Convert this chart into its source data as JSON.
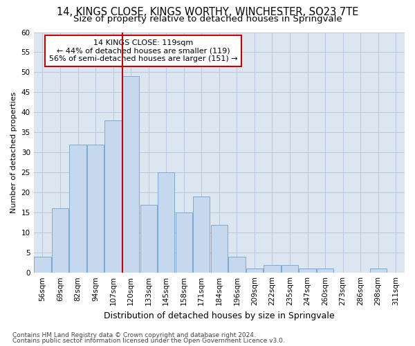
{
  "title1": "14, KINGS CLOSE, KINGS WORTHY, WINCHESTER, SO23 7TE",
  "title2": "Size of property relative to detached houses in Springvale",
  "xlabel": "Distribution of detached houses by size in Springvale",
  "ylabel": "Number of detached properties",
  "categories": [
    "56sqm",
    "69sqm",
    "82sqm",
    "94sqm",
    "107sqm",
    "120sqm",
    "133sqm",
    "145sqm",
    "158sqm",
    "171sqm",
    "184sqm",
    "196sqm",
    "209sqm",
    "222sqm",
    "235sqm",
    "247sqm",
    "260sqm",
    "273sqm",
    "286sqm",
    "298sqm",
    "311sqm"
  ],
  "values": [
    4,
    16,
    32,
    32,
    38,
    49,
    17,
    25,
    15,
    19,
    12,
    4,
    1,
    2,
    2,
    1,
    1,
    0,
    0,
    1,
    0
  ],
  "bar_color": "#c5d8ee",
  "bar_edge_color": "#7baad4",
  "highlight_bar_index": 5,
  "red_line_color": "#cc0000",
  "annotation_line1": "14 KINGS CLOSE: 119sqm",
  "annotation_line2": "← 44% of detached houses are smaller (119)",
  "annotation_line3": "56% of semi-detached houses are larger (151) →",
  "annotation_box_color": "white",
  "annotation_box_edge_color": "#cc0000",
  "ylim": [
    0,
    60
  ],
  "yticks": [
    0,
    5,
    10,
    15,
    20,
    25,
    30,
    35,
    40,
    45,
    50,
    55,
    60
  ],
  "fig_bg_color": "#ffffff",
  "plot_bg_color": "#dce6f0",
  "grid_color": "#b8c8dc",
  "footer1": "Contains HM Land Registry data © Crown copyright and database right 2024.",
  "footer2": "Contains public sector information licensed under the Open Government Licence v3.0.",
  "title1_fontsize": 10.5,
  "title2_fontsize": 9.5,
  "xlabel_fontsize": 9,
  "ylabel_fontsize": 8,
  "tick_fontsize": 7.5,
  "annotation_fontsize": 8,
  "footer_fontsize": 6.5
}
